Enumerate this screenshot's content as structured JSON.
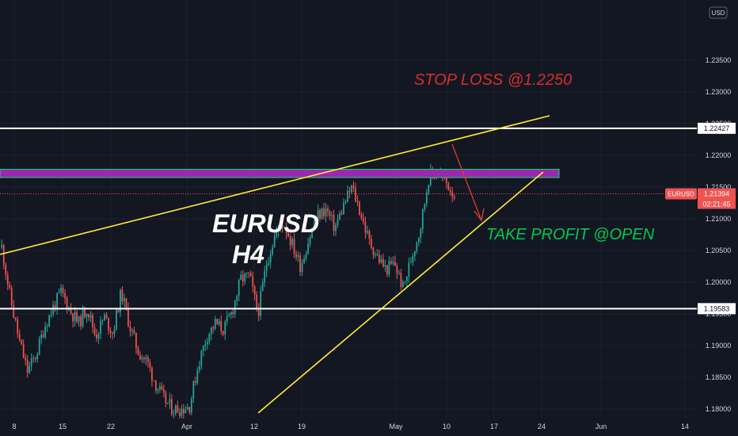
{
  "chart_data": {
    "type": "candlestick",
    "title": "EURUSD",
    "subtitle": "H4",
    "currency": "USD",
    "symbol_tag": "EURUSD",
    "last_price": "1.21394",
    "countdown": "02:21:45",
    "ylim": [
      1.1795,
      1.2345
    ],
    "y_ticks": [
      "1.18000",
      "1.18500",
      "1.19000",
      "1.19500",
      "1.20000",
      "1.20500",
      "1.21000",
      "1.21500",
      "1.22000",
      "1.22500",
      "1.23000",
      "1.23500"
    ],
    "x_ticks": [
      "8",
      "15",
      "22",
      "Apr",
      "12",
      "19",
      "May",
      "10",
      "17",
      "24",
      "Jun",
      "14"
    ],
    "levels": [
      {
        "name": "resistance",
        "price": 1.22427,
        "label": "1.22427"
      },
      {
        "name": "support",
        "price": 1.19583,
        "label": "1.19583"
      }
    ],
    "zone": {
      "from": 1.2165,
      "to": 1.2178
    },
    "annotations": {
      "stop_loss": "STOP LOSS @1.2250",
      "take_profit": "TAKE PROFIT @OPEN"
    },
    "series_path": [
      1.2055,
      1.1975,
      1.191,
      1.186,
      1.1885,
      1.193,
      1.196,
      1.1985,
      1.1955,
      1.1935,
      1.196,
      1.1915,
      1.1945,
      1.192,
      1.1985,
      1.193,
      1.189,
      1.1875,
      1.184,
      1.1815,
      1.18,
      1.18,
      1.1805,
      1.187,
      1.1915,
      1.1935,
      1.1925,
      1.1955,
      1.2005,
      1.201,
      1.195,
      1.203,
      1.2075,
      1.2095,
      1.206,
      1.2025,
      1.207,
      1.2105,
      1.2115,
      1.2085,
      1.212,
      1.215,
      1.211,
      1.2065,
      1.204,
      1.202,
      1.203,
      1.199,
      1.204,
      1.2085,
      1.2165,
      1.2175,
      1.2158,
      1.2138
    ],
    "colors": {
      "up": "#26a69a",
      "down": "#ef5350",
      "trend": "#ffeb3b",
      "zone": "#9c27b0",
      "zone_border": "#00e676",
      "stop_loss": "#d32f2f",
      "take_profit": "#00c853",
      "arrow": "#e53935"
    }
  }
}
